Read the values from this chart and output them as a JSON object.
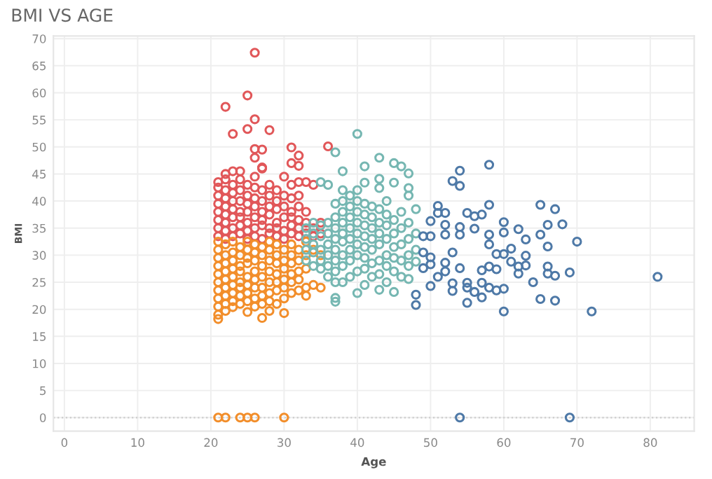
{
  "chart_data": {
    "type": "scatter",
    "title": "BMI VS AGE",
    "xlabel": "Age",
    "ylabel": "BMI",
    "xlim": [
      -1.5,
      86
    ],
    "ylim": [
      -2.5,
      70.5
    ],
    "xticks": [
      0,
      10,
      20,
      30,
      40,
      50,
      60,
      70,
      80
    ],
    "yticks": [
      0,
      5,
      10,
      15,
      20,
      25,
      30,
      35,
      40,
      45,
      50,
      55,
      60,
      65,
      70
    ],
    "grid": true,
    "marker": "circle",
    "legend": false,
    "ref_lines": [
      {
        "axis": "y",
        "value": 0,
        "line_style": "dotted",
        "color": "#cccccc"
      }
    ],
    "series": [
      {
        "color": "#e15759",
        "x": [
          26,
          25,
          22,
          26,
          25,
          28,
          23,
          26,
          27,
          31,
          32,
          26,
          31,
          32,
          27,
          36,
          21,
          21,
          21,
          21,
          21,
          21,
          21,
          21,
          22,
          22,
          22,
          22,
          22,
          22,
          22,
          22,
          22,
          23,
          23,
          23,
          23,
          23,
          23,
          23,
          23,
          24,
          24,
          24,
          24,
          24,
          24,
          24,
          24,
          25,
          25,
          25,
          25,
          25,
          25,
          25,
          26,
          26,
          26,
          26,
          26,
          26,
          26,
          27,
          27,
          27,
          27,
          27,
          27,
          27,
          28,
          28,
          28,
          28,
          28,
          28,
          29,
          29,
          29,
          29,
          29,
          29,
          30,
          30,
          30,
          30,
          30,
          30,
          31,
          31,
          31,
          31,
          31,
          31,
          32,
          32,
          32,
          32,
          32,
          32,
          33,
          33,
          33,
          33,
          34,
          34,
          34,
          35,
          35
        ],
        "values": [
          67.4,
          59.5,
          57.4,
          55.1,
          53.3,
          53.1,
          52.4,
          49.6,
          49.5,
          49.9,
          48.4,
          48,
          47,
          46.5,
          46.2,
          50.1,
          33.5,
          35,
          36.5,
          38,
          39.5,
          41,
          42.5,
          43.5,
          33,
          34.5,
          36,
          37.5,
          39,
          40.5,
          42,
          44,
          45,
          33.5,
          35,
          37,
          38.5,
          40,
          41.5,
          43,
          45.5,
          34,
          35.5,
          37,
          38,
          40,
          42,
          44,
          45.5,
          33,
          34.5,
          36,
          38,
          39.5,
          41,
          43,
          33.5,
          35,
          37,
          39,
          40.5,
          42.5,
          44.5,
          33,
          35.5,
          36.5,
          38,
          40,
          42,
          46,
          34,
          35,
          37.5,
          39,
          41,
          43,
          33.5,
          35,
          36,
          38.5,
          40,
          42,
          33,
          34.5,
          37,
          39,
          41,
          44.5,
          34,
          35.5,
          37,
          38,
          40.5,
          43,
          33.5,
          35,
          36.5,
          39,
          41,
          43.5,
          34,
          36,
          38,
          43.5,
          33.5,
          35,
          43,
          34,
          36
        ]
      },
      {
        "color": "#f28e2b",
        "x": [
          21,
          22,
          24,
          25,
          26,
          30,
          21,
          21,
          21,
          21,
          21,
          21,
          21,
          21,
          21,
          21,
          21,
          22,
          22,
          22,
          22,
          22,
          22,
          22,
          22,
          22,
          23,
          23,
          23,
          23,
          23,
          23,
          23,
          23,
          23,
          24,
          24,
          24,
          24,
          24,
          24,
          24,
          24,
          25,
          25,
          25,
          25,
          25,
          25,
          25,
          25,
          25,
          26,
          26,
          26,
          26,
          26,
          26,
          26,
          26,
          27,
          27,
          27,
          27,
          27,
          27,
          27,
          27,
          28,
          28,
          28,
          28,
          28,
          28,
          28,
          28,
          29,
          29,
          29,
          29,
          29,
          29,
          29,
          30,
          30,
          30,
          30,
          30,
          30,
          30,
          31,
          31,
          31,
          31,
          31,
          31,
          32,
          32,
          32,
          32,
          32,
          33,
          33,
          33,
          33,
          33,
          34,
          34,
          35,
          35
        ],
        "values": [
          0,
          0,
          0,
          0,
          0,
          0,
          18.2,
          19,
          20.5,
          22,
          23.5,
          25,
          26.5,
          28,
          29.5,
          31,
          32.5,
          19.7,
          21,
          22.5,
          24,
          25.5,
          27,
          28.5,
          30,
          32,
          20.4,
          21.5,
          23,
          24.5,
          26,
          27.5,
          29,
          30.5,
          32.5,
          21,
          22.5,
          24,
          25,
          27,
          28,
          30,
          31.5,
          19.5,
          21.5,
          23,
          24.5,
          26,
          28.5,
          29.5,
          31,
          32.5,
          20.5,
          22,
          24,
          25.5,
          27,
          29,
          30.5,
          32,
          18.4,
          21,
          22.5,
          24,
          26,
          28,
          30,
          31.5,
          19.7,
          21.5,
          23,
          25,
          27,
          29,
          31,
          32.5,
          21,
          23.5,
          25,
          26.5,
          28.5,
          30,
          32,
          19.3,
          22,
          24,
          25.5,
          27.5,
          29,
          31,
          23,
          25,
          26.5,
          28.5,
          30,
          32,
          23.5,
          25.5,
          27,
          29,
          31,
          22.5,
          24,
          27.5,
          30,
          32.5,
          24.5,
          31,
          24,
          30
        ]
      },
      {
        "color": "#76b7b2",
        "x": [
          33,
          33,
          33,
          33,
          34,
          34,
          34,
          34,
          34,
          35,
          35,
          35,
          35,
          35,
          35,
          36,
          36,
          36,
          36,
          36,
          36,
          36,
          37,
          37,
          37,
          37,
          37,
          37,
          37,
          37,
          37,
          37,
          37,
          38,
          38,
          38,
          38,
          38,
          38,
          38,
          38,
          38,
          38,
          39,
          39,
          39,
          39,
          39,
          39,
          39,
          39,
          40,
          40,
          40,
          40,
          40,
          40,
          40,
          40,
          40,
          40,
          41,
          41,
          41,
          41,
          41,
          41,
          41,
          41,
          41,
          41,
          42,
          42,
          42,
          42,
          42,
          42,
          42,
          43,
          43,
          43,
          43,
          43,
          43,
          43,
          43,
          43,
          43,
          44,
          44,
          44,
          44,
          44,
          44,
          44,
          45,
          45,
          45,
          45,
          45,
          45,
          45,
          45,
          46,
          46,
          46,
          46,
          46,
          46,
          47,
          47,
          47,
          47,
          47,
          47,
          47,
          47,
          48,
          48,
          48,
          48
        ],
        "values": [
          29,
          31,
          33,
          35,
          28,
          30.5,
          32,
          34,
          36,
          27.5,
          29,
          31,
          33.5,
          35.5,
          43.5,
          26,
          28,
          30,
          32,
          34,
          36,
          43,
          21.4,
          22.1,
          25,
          27,
          29,
          31,
          33,
          35,
          37,
          39.5,
          49,
          25,
          28,
          30,
          32.5,
          34,
          36,
          38,
          40,
          42,
          45.5,
          26,
          29,
          31,
          33,
          35,
          37,
          39,
          41,
          23,
          27,
          30,
          32,
          34,
          36,
          38,
          40,
          42,
          52.4,
          24.5,
          27.5,
          29.5,
          31.5,
          33.5,
          35.5,
          37.5,
          39.5,
          43.4,
          46.4,
          26,
          28.5,
          31,
          33,
          35,
          37,
          39,
          23.6,
          26.5,
          29,
          32,
          34,
          36,
          38.5,
          42.4,
          44.1,
          48,
          25,
          28,
          30,
          33,
          35.5,
          37.5,
          40,
          23.2,
          27,
          29.5,
          31.5,
          34,
          36.5,
          43.4,
          47,
          26,
          29,
          32,
          35,
          38,
          46.4,
          25.6,
          28,
          30,
          33,
          36,
          41,
          42.4,
          45.1,
          28.8,
          31,
          34,
          38.5
        ]
      },
      {
        "color": "#4e79a7",
        "x": [
          54,
          58,
          53,
          54,
          51,
          58,
          65,
          67,
          55,
          56,
          57,
          52,
          51,
          50,
          60,
          66,
          68,
          52,
          54,
          56,
          62,
          60,
          58,
          54,
          49,
          50,
          52,
          65,
          63,
          70,
          58,
          66,
          61,
          59,
          60,
          53,
          49,
          50,
          63,
          61,
          52,
          50,
          49,
          54,
          58,
          59,
          57,
          62,
          63,
          66,
          62,
          66,
          67,
          69,
          52,
          51,
          81,
          55,
          57,
          64,
          53,
          50,
          55,
          58,
          60,
          59,
          53,
          56,
          48,
          57,
          65,
          67,
          55,
          48,
          60,
          72,
          54,
          69
        ],
        "values": [
          45.6,
          46.7,
          43.7,
          42.8,
          39.1,
          39.3,
          39.3,
          38.5,
          37.8,
          37.2,
          37.5,
          37.8,
          37.8,
          36.3,
          36.1,
          35.6,
          35.7,
          35.6,
          35.2,
          34.9,
          34.8,
          34.2,
          33.8,
          33.8,
          33.5,
          33.5,
          33.8,
          33.8,
          32.9,
          32.5,
          32,
          31.6,
          31.2,
          30.2,
          30.2,
          30.5,
          30.5,
          29.6,
          29.9,
          28.8,
          28.6,
          28.3,
          27.6,
          27.6,
          27.9,
          27.4,
          27.2,
          27.9,
          28.1,
          27.9,
          26.6,
          26.6,
          26.2,
          26.8,
          27,
          26,
          26,
          24.9,
          24.9,
          25,
          24.8,
          24.3,
          24,
          24,
          23.8,
          23.5,
          23.4,
          23.2,
          22.7,
          22.2,
          21.9,
          21.6,
          21.2,
          20.8,
          19.6,
          19.6,
          0,
          0
        ]
      }
    ]
  }
}
